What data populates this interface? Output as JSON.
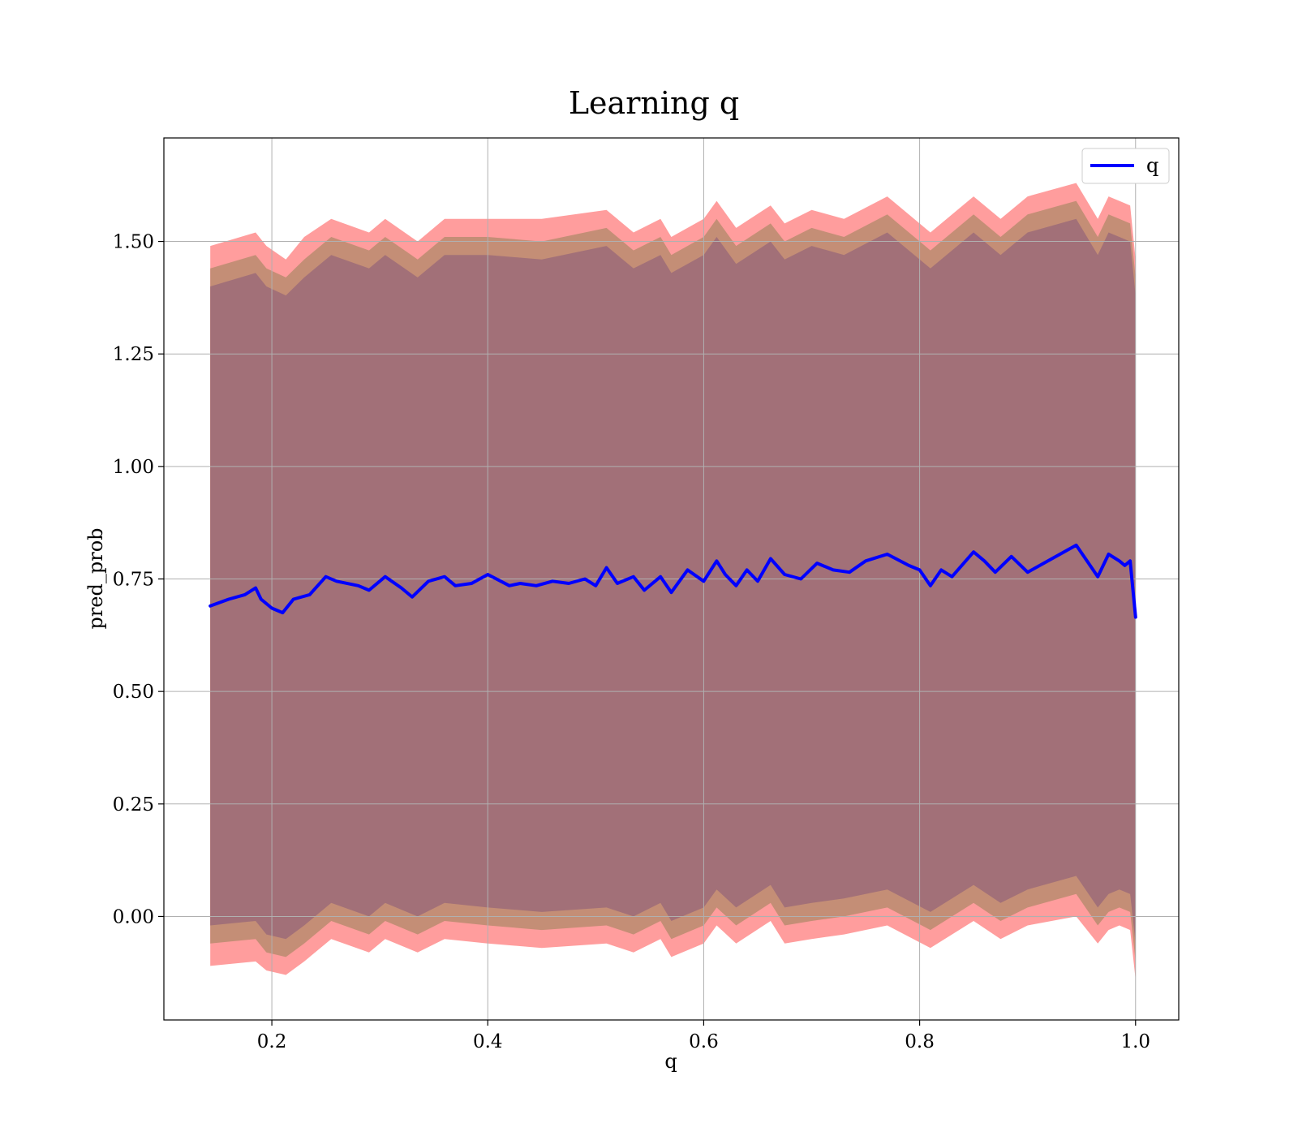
{
  "chart_data": {
    "type": "area",
    "title": "Learning q",
    "xlabel": "q",
    "ylabel": "pred_prob",
    "xlim": [
      0.1,
      1.04
    ],
    "ylim": [
      -0.23,
      1.73
    ],
    "x_ticks": [
      0.2,
      0.4,
      0.6,
      0.8,
      1.0
    ],
    "x_tick_labels": [
      "0.2",
      "0.4",
      "0.6",
      "0.8",
      "1.0"
    ],
    "y_ticks": [
      0.0,
      0.25,
      0.5,
      0.75,
      1.0,
      1.25,
      1.5
    ],
    "y_tick_labels": [
      "0.00",
      "0.25",
      "0.50",
      "0.75",
      "1.00",
      "1.25",
      "1.50"
    ],
    "grid": true,
    "legend": {
      "position": "top-right",
      "entries": [
        "q"
      ]
    },
    "colors": {
      "line": "#0000ff",
      "band_outer": "#ff9d9d",
      "band_middle": "#c48e76",
      "band_inner": "#a27078"
    },
    "series": [
      {
        "name": "q",
        "x": [
          0.143,
          0.16,
          0.175,
          0.185,
          0.19,
          0.2,
          0.21,
          0.22,
          0.235,
          0.25,
          0.26,
          0.28,
          0.29,
          0.305,
          0.32,
          0.33,
          0.345,
          0.36,
          0.37,
          0.385,
          0.4,
          0.42,
          0.43,
          0.445,
          0.46,
          0.475,
          0.49,
          0.5,
          0.51,
          0.52,
          0.535,
          0.545,
          0.56,
          0.57,
          0.585,
          0.6,
          0.612,
          0.62,
          0.63,
          0.64,
          0.65,
          0.662,
          0.675,
          0.69,
          0.705,
          0.72,
          0.735,
          0.75,
          0.77,
          0.79,
          0.8,
          0.81,
          0.82,
          0.83,
          0.85,
          0.86,
          0.87,
          0.885,
          0.9,
          0.915,
          0.93,
          0.945,
          0.955,
          0.965,
          0.975,
          0.985,
          0.99,
          0.995,
          1.0
        ],
        "values": [
          0.69,
          0.705,
          0.715,
          0.73,
          0.705,
          0.685,
          0.675,
          0.705,
          0.715,
          0.755,
          0.745,
          0.735,
          0.725,
          0.755,
          0.73,
          0.71,
          0.745,
          0.755,
          0.735,
          0.74,
          0.76,
          0.735,
          0.74,
          0.735,
          0.745,
          0.74,
          0.75,
          0.735,
          0.775,
          0.74,
          0.755,
          0.725,
          0.755,
          0.72,
          0.77,
          0.745,
          0.79,
          0.76,
          0.735,
          0.77,
          0.745,
          0.795,
          0.76,
          0.75,
          0.785,
          0.77,
          0.765,
          0.79,
          0.805,
          0.78,
          0.77,
          0.735,
          0.77,
          0.755,
          0.81,
          0.79,
          0.765,
          0.8,
          0.765,
          0.785,
          0.805,
          0.825,
          0.79,
          0.755,
          0.805,
          0.79,
          0.78,
          0.79,
          0.665
        ]
      }
    ],
    "bands": [
      {
        "x": [
          0.143,
          0.185,
          0.195,
          0.213,
          0.23,
          0.255,
          0.29,
          0.305,
          0.335,
          0.36,
          0.4,
          0.45,
          0.51,
          0.535,
          0.56,
          0.57,
          0.6,
          0.612,
          0.63,
          0.662,
          0.675,
          0.7,
          0.73,
          0.77,
          0.81,
          0.85,
          0.875,
          0.9,
          0.945,
          0.965,
          0.975,
          0.985,
          0.995,
          1.0
        ],
        "upper": [
          1.49,
          1.52,
          1.49,
          1.46,
          1.51,
          1.55,
          1.52,
          1.55,
          1.5,
          1.55,
          1.55,
          1.55,
          1.57,
          1.52,
          1.55,
          1.51,
          1.55,
          1.59,
          1.53,
          1.58,
          1.54,
          1.57,
          1.55,
          1.6,
          1.52,
          1.6,
          1.55,
          1.6,
          1.63,
          1.55,
          1.6,
          1.59,
          1.58,
          1.46
        ],
        "lower": [
          -0.11,
          -0.1,
          -0.12,
          -0.13,
          -0.1,
          -0.05,
          -0.08,
          -0.05,
          -0.08,
          -0.05,
          -0.06,
          -0.07,
          -0.06,
          -0.08,
          -0.05,
          -0.09,
          -0.06,
          -0.02,
          -0.06,
          -0.01,
          -0.06,
          -0.05,
          -0.04,
          -0.02,
          -0.07,
          -0.01,
          -0.05,
          -0.02,
          0.0,
          -0.06,
          -0.03,
          -0.02,
          -0.03,
          -0.14
        ]
      },
      {
        "x": [
          0.143,
          0.185,
          0.195,
          0.213,
          0.23,
          0.255,
          0.29,
          0.305,
          0.335,
          0.36,
          0.4,
          0.45,
          0.51,
          0.535,
          0.56,
          0.57,
          0.6,
          0.612,
          0.63,
          0.662,
          0.675,
          0.7,
          0.73,
          0.77,
          0.81,
          0.85,
          0.875,
          0.9,
          0.945,
          0.965,
          0.975,
          0.985,
          0.995,
          1.0
        ],
        "upper": [
          1.44,
          1.47,
          1.44,
          1.42,
          1.46,
          1.51,
          1.48,
          1.51,
          1.46,
          1.51,
          1.51,
          1.5,
          1.53,
          1.48,
          1.51,
          1.47,
          1.51,
          1.55,
          1.49,
          1.54,
          1.5,
          1.53,
          1.51,
          1.56,
          1.48,
          1.56,
          1.51,
          1.56,
          1.59,
          1.51,
          1.56,
          1.55,
          1.54,
          1.42
        ],
        "lower": [
          -0.06,
          -0.05,
          -0.08,
          -0.09,
          -0.06,
          -0.01,
          -0.04,
          -0.01,
          -0.04,
          -0.01,
          -0.02,
          -0.03,
          -0.02,
          -0.04,
          -0.01,
          -0.05,
          -0.02,
          0.02,
          -0.02,
          0.03,
          -0.02,
          -0.01,
          0.0,
          0.02,
          -0.03,
          0.03,
          -0.01,
          0.02,
          0.05,
          -0.02,
          0.01,
          0.02,
          0.01,
          -0.1
        ]
      },
      {
        "x": [
          0.143,
          0.185,
          0.195,
          0.213,
          0.23,
          0.255,
          0.29,
          0.305,
          0.335,
          0.36,
          0.4,
          0.45,
          0.51,
          0.535,
          0.56,
          0.57,
          0.6,
          0.612,
          0.63,
          0.662,
          0.675,
          0.7,
          0.73,
          0.77,
          0.81,
          0.85,
          0.875,
          0.9,
          0.945,
          0.965,
          0.975,
          0.985,
          0.995,
          1.0
        ],
        "upper": [
          1.4,
          1.43,
          1.4,
          1.38,
          1.42,
          1.47,
          1.44,
          1.47,
          1.42,
          1.47,
          1.47,
          1.46,
          1.49,
          1.44,
          1.47,
          1.43,
          1.47,
          1.51,
          1.45,
          1.5,
          1.46,
          1.49,
          1.47,
          1.52,
          1.44,
          1.52,
          1.47,
          1.52,
          1.55,
          1.47,
          1.52,
          1.51,
          1.5,
          1.38
        ],
        "lower": [
          -0.02,
          -0.01,
          -0.04,
          -0.05,
          -0.02,
          0.03,
          0.0,
          0.03,
          0.0,
          0.03,
          0.02,
          0.01,
          0.02,
          0.0,
          0.03,
          -0.01,
          0.02,
          0.06,
          0.02,
          0.07,
          0.02,
          0.03,
          0.04,
          0.06,
          0.01,
          0.07,
          0.03,
          0.06,
          0.09,
          0.02,
          0.05,
          0.06,
          0.05,
          -0.06
        ]
      }
    ]
  }
}
